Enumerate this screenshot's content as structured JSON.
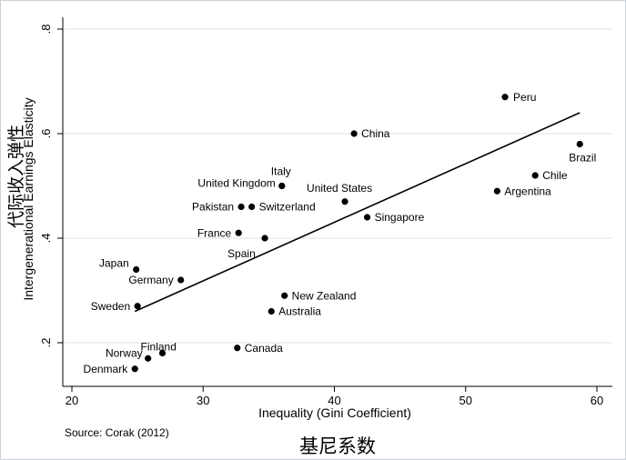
{
  "annotations": {
    "y_chinese": "代际收入弹性",
    "x_chinese": "基尼系数",
    "source": "Source: Corak (2012)"
  },
  "colors": {
    "marker": "#000000",
    "gridline": "#d9e6ea",
    "fit_line": "#000000",
    "frame_border": "#c9d3dc"
  },
  "chart_data": {
    "type": "scatter",
    "title": "",
    "xlabel": "Inequality (Gini Coefficient)",
    "ylabel": "Intergenerational Earnings Elasticity",
    "xlim": [
      20,
      60
    ],
    "ylim": [
      0.2,
      0.8
    ],
    "xticks": [
      20,
      30,
      40,
      50,
      60
    ],
    "xtick_labels": [
      "20",
      "30",
      "40",
      "50",
      "60"
    ],
    "yticks": [
      0.2,
      0.4,
      0.6,
      0.8
    ],
    "ytick_labels": [
      ".2",
      ".4",
      ".6",
      ".8"
    ],
    "grid": "horizontal",
    "legend": "none",
    "points": [
      {
        "label": "Peru",
        "x": 53.0,
        "y": 0.67
      },
      {
        "label": "China",
        "x": 41.5,
        "y": 0.6
      },
      {
        "label": "Brazil",
        "x": 58.7,
        "y": 0.58
      },
      {
        "label": "Chile",
        "x": 55.3,
        "y": 0.52
      },
      {
        "label": "Italy",
        "x": 36.0,
        "y": 0.5
      },
      {
        "label": "United Kingdom",
        "x": 36.0,
        "y": 0.5
      },
      {
        "label": "Argentina",
        "x": 52.4,
        "y": 0.49
      },
      {
        "label": "United States",
        "x": 40.8,
        "y": 0.47
      },
      {
        "label": "Pakistan",
        "x": 32.9,
        "y": 0.46
      },
      {
        "label": "Switzerland",
        "x": 33.7,
        "y": 0.46
      },
      {
        "label": "Singapore",
        "x": 42.5,
        "y": 0.44
      },
      {
        "label": "France",
        "x": 32.7,
        "y": 0.41
      },
      {
        "label": "Spain",
        "x": 34.7,
        "y": 0.4
      },
      {
        "label": "Japan",
        "x": 24.9,
        "y": 0.34
      },
      {
        "label": "Germany",
        "x": 28.3,
        "y": 0.32
      },
      {
        "label": "New Zealand",
        "x": 36.2,
        "y": 0.29
      },
      {
        "label": "Sweden",
        "x": 25.0,
        "y": 0.27
      },
      {
        "label": "Australia",
        "x": 35.2,
        "y": 0.26
      },
      {
        "label": "Canada",
        "x": 32.6,
        "y": 0.19
      },
      {
        "label": "Finland",
        "x": 26.9,
        "y": 0.18
      },
      {
        "label": "Norway",
        "x": 25.8,
        "y": 0.17
      },
      {
        "label": "Denmark",
        "x": 24.8,
        "y": 0.15
      }
    ],
    "fit_line": {
      "x": [
        24.8,
        58.7
      ],
      "y": [
        0.26,
        0.64
      ]
    }
  }
}
